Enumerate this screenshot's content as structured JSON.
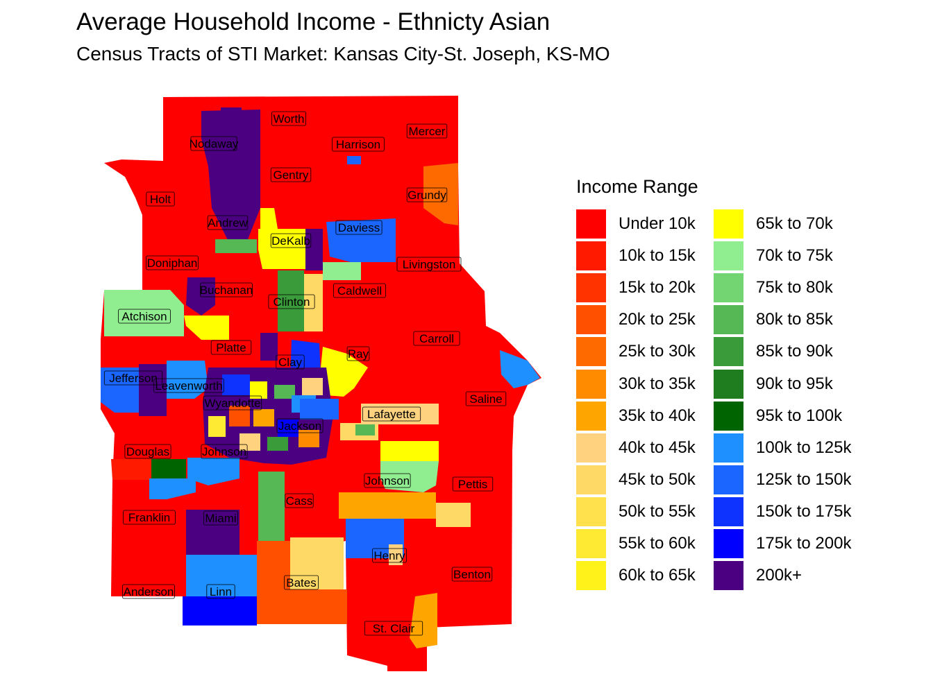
{
  "title": "Average Household Income - Ethnicty Asian",
  "subtitle": "Census Tracts of STI Market: Kansas City-St. Joseph, KS-MO",
  "legend": {
    "title": "Income Range",
    "items": [
      {
        "label": "Under 10k",
        "color": "#ff0000"
      },
      {
        "label": "10k to 15k",
        "color": "#ff1a00"
      },
      {
        "label": "15k to 20k",
        "color": "#ff3300"
      },
      {
        "label": "20k to 25k",
        "color": "#ff5000"
      },
      {
        "label": "25k to 30k",
        "color": "#ff6a00"
      },
      {
        "label": "30k to 35k",
        "color": "#ff8c00"
      },
      {
        "label": "35k to 40k",
        "color": "#ffa500"
      },
      {
        "label": "40k to 45k",
        "color": "#ffd27f"
      },
      {
        "label": "45k to 50k",
        "color": "#ffd966"
      },
      {
        "label": "50k to 55k",
        "color": "#ffe14d"
      },
      {
        "label": "55k to 60k",
        "color": "#ffea33"
      },
      {
        "label": "60k to 65k",
        "color": "#fff21a"
      },
      {
        "label": "65k to 70k",
        "color": "#ffff00"
      },
      {
        "label": "70k to 75k",
        "color": "#90ee90"
      },
      {
        "label": "75k to 80k",
        "color": "#72d572"
      },
      {
        "label": "80k to 85k",
        "color": "#55b855"
      },
      {
        "label": "85k to 90k",
        "color": "#3a9b3a"
      },
      {
        "label": "90k to 95k",
        "color": "#1f7d1f"
      },
      {
        "label": "95k to 100k",
        "color": "#006400"
      },
      {
        "label": "100k to 125k",
        "color": "#1e90ff"
      },
      {
        "label": "125k to 150k",
        "color": "#1a66ff"
      },
      {
        "label": "150k to 175k",
        "color": "#0f33ff"
      },
      {
        "label": "175k to 200k",
        "color": "#0000ff"
      },
      {
        "label": "200k+",
        "color": "#4b0082"
      }
    ]
  },
  "counties": [
    "Worth",
    "Nodaway",
    "Harrison",
    "Mercer",
    "Gentry",
    "Holt",
    "Grundy",
    "Andrew",
    "Daviess",
    "DeKalb",
    "Doniphan",
    "Livingston",
    "Buchanan",
    "Caldwell",
    "Clinton",
    "Atchison",
    "Carroll",
    "Platte",
    "Ray",
    "Clay",
    "Jefferson",
    "Leavenworth",
    "Saline",
    "Wyandotte",
    "Lafayette",
    "Jackson",
    "Douglas",
    "Johnson",
    "Johnson",
    "Pettis",
    "Cass",
    "Franklin",
    "Miami",
    "Henry",
    "Benton",
    "Bates",
    "Anderson",
    "Linn",
    "St. Clair"
  ]
}
